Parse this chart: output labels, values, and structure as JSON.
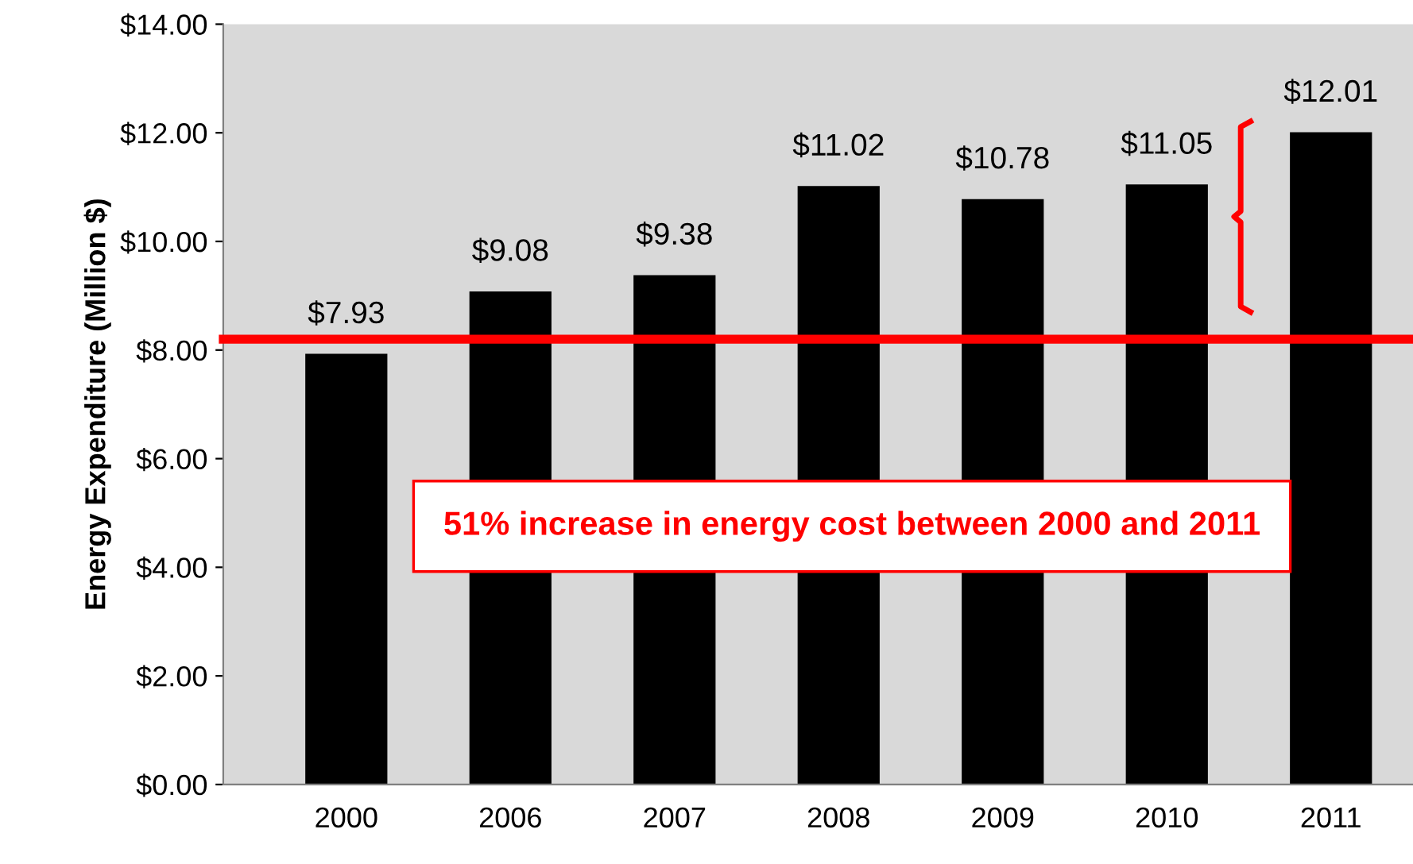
{
  "chart_data": {
    "type": "bar",
    "ylabel": "Energy Expenditure (Million $)",
    "categories": [
      "2000",
      "2006",
      "2007",
      "2008",
      "2009",
      "2010",
      "2011"
    ],
    "values": [
      7.93,
      9.08,
      9.38,
      11.02,
      10.78,
      11.05,
      12.01
    ],
    "value_labels": [
      "$7.93",
      "$9.08",
      "$9.38",
      "$11.02",
      "$10.78",
      "$11.05",
      "$12.01"
    ],
    "color": "#000000",
    "ylim": [
      0,
      14
    ],
    "yticks": [
      {
        "value": 0,
        "label": "$0.00"
      },
      {
        "value": 2,
        "label": "$2.00"
      },
      {
        "value": 4,
        "label": "$4.00"
      },
      {
        "value": 6,
        "label": "$6.00"
      },
      {
        "value": 8,
        "label": "$8.00"
      },
      {
        "value": 10,
        "label": "$10.00"
      },
      {
        "value": 12,
        "label": "$12.00"
      },
      {
        "value": 14,
        "label": "$14.00"
      }
    ],
    "ref_lines": [
      {
        "axis": "y",
        "value": 8.2,
        "color": "#ff0000"
      }
    ],
    "annotations": [
      "51% increase in energy cost between 2000 and 2011"
    ],
    "grid": false
  }
}
